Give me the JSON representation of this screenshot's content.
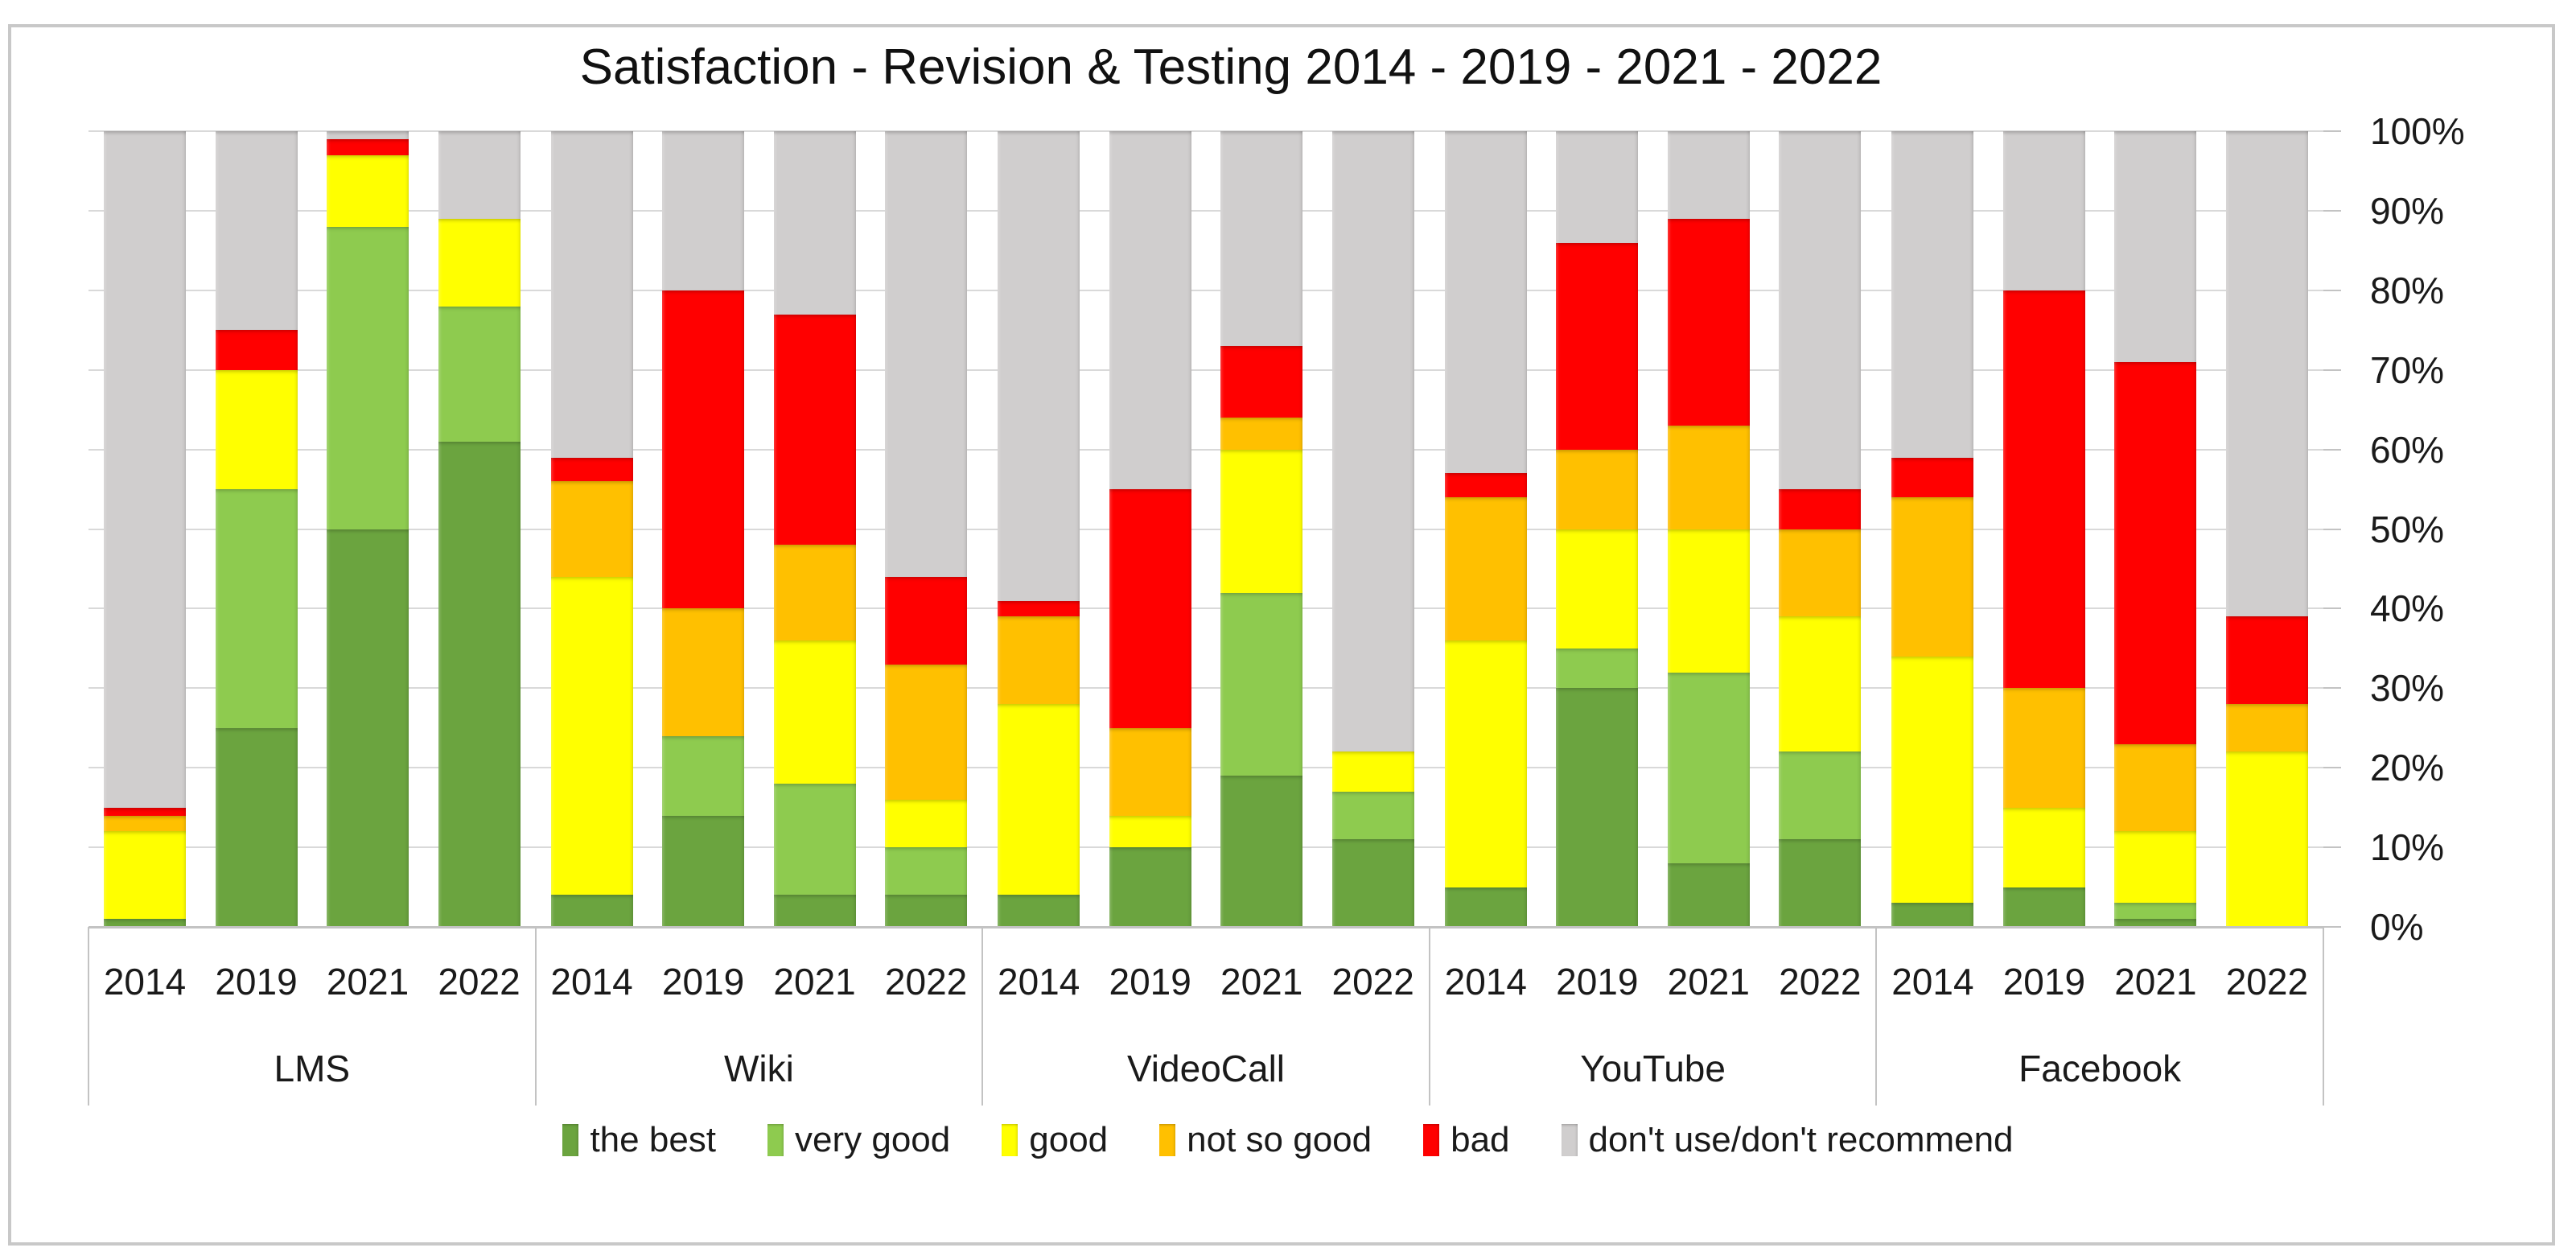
{
  "title": "Satisfaction - Revision & Testing 2014 - 2019 - 2021 - 2022",
  "chart_data": {
    "type": "bar",
    "subtype": "stacked-percent-column",
    "title": "Satisfaction - Revision & Testing 2014 - 2019 - 2021 - 2022",
    "unit": "%",
    "grid": true,
    "legend_position": "bottom",
    "legend": [
      "the best",
      "very good",
      "good",
      "not so good",
      "bad",
      "don't use/don't recommend"
    ],
    "colors": [
      "#6BA43F",
      "#8ECB4F",
      "#FFFF00",
      "#FFC000",
      "#FF0000",
      "#D0CECE"
    ],
    "grid_color": "#D9D9D9",
    "axis_color": "#C3C3C3",
    "y_axis": {
      "side": "right",
      "min": 0,
      "max": 100,
      "step": 10,
      "tick_labels": [
        "0%",
        "10%",
        "20%",
        "30%",
        "40%",
        "50%",
        "60%",
        "70%",
        "80%",
        "90%",
        "100%"
      ]
    },
    "series_order": [
      "the best",
      "very good",
      "good",
      "not so good",
      "bad",
      "don't use/don't recommend"
    ],
    "groups": [
      {
        "label": "LMS",
        "bars": [
          {
            "year": "2014",
            "values": [
              1,
              0,
              11,
              2,
              1,
              85
            ]
          },
          {
            "year": "2019",
            "values": [
              25,
              30,
              15,
              0,
              5,
              25
            ]
          },
          {
            "year": "2021",
            "values": [
              50,
              38,
              9,
              0,
              2,
              1
            ]
          },
          {
            "year": "2022",
            "values": [
              61,
              17,
              11,
              0,
              0,
              11
            ]
          }
        ]
      },
      {
        "label": "Wiki",
        "bars": [
          {
            "year": "2014",
            "values": [
              4,
              0,
              40,
              12,
              3,
              41
            ]
          },
          {
            "year": "2019",
            "values": [
              14,
              10,
              0,
              16,
              40,
              20
            ]
          },
          {
            "year": "2021",
            "values": [
              4,
              14,
              18,
              12,
              29,
              23
            ]
          },
          {
            "year": "2022",
            "values": [
              4,
              6,
              6,
              17,
              11,
              56
            ]
          }
        ]
      },
      {
        "label": "VideoCall",
        "bars": [
          {
            "year": "2014",
            "values": [
              4,
              0,
              24,
              11,
              2,
              59
            ]
          },
          {
            "year": "2019",
            "values": [
              10,
              0,
              4,
              11,
              30,
              45
            ]
          },
          {
            "year": "2021",
            "values": [
              19,
              23,
              18,
              4,
              9,
              27
            ]
          },
          {
            "year": "2022",
            "values": [
              11,
              6,
              5,
              0,
              0,
              78
            ]
          }
        ]
      },
      {
        "label": "YouTube",
        "bars": [
          {
            "year": "2014",
            "values": [
              5,
              0,
              31,
              18,
              3,
              43
            ]
          },
          {
            "year": "2019",
            "values": [
              30,
              5,
              15,
              10,
              26,
              14
            ]
          },
          {
            "year": "2021",
            "values": [
              8,
              24,
              18,
              13,
              26,
              11
            ]
          },
          {
            "year": "2022",
            "values": [
              11,
              11,
              17,
              11,
              5,
              45
            ]
          }
        ]
      },
      {
        "label": "Facebook",
        "bars": [
          {
            "year": "2014",
            "values": [
              3,
              0,
              31,
              20,
              5,
              41
            ]
          },
          {
            "year": "2019",
            "values": [
              5,
              0,
              10,
              15,
              50,
              20
            ]
          },
          {
            "year": "2021",
            "values": [
              1,
              2,
              9,
              11,
              48,
              29
            ]
          },
          {
            "year": "2022",
            "values": [
              0,
              0,
              22,
              6,
              11,
              61
            ]
          }
        ]
      }
    ]
  }
}
